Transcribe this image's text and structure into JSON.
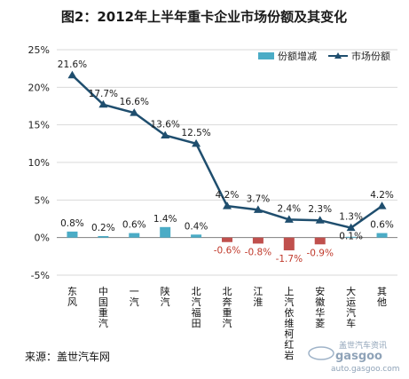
{
  "chart_data": {
    "type": "bar+line",
    "title": "图2：2012年上半年重卡企业市场份额及其变化",
    "categories": [
      "东风",
      "中国重汽",
      "一汽",
      "陕汽",
      "北汽福田",
      "北奔重汽",
      "江淮",
      "上汽依维柯红岩",
      "安徽华菱",
      "大运汽车",
      "其他"
    ],
    "series": [
      {
        "name": "份额增减",
        "type": "bar",
        "color": "#4bacc6",
        "values": [
          0.8,
          0.2,
          0.6,
          1.4,
          0.4,
          -0.6,
          -0.8,
          -1.7,
          -0.9,
          0.1,
          0.6
        ],
        "labels": [
          "0.8%",
          "0.2%",
          "0.6%",
          "1.4%",
          "0.4%",
          "-0.6%",
          "-0.8%",
          "-1.7%",
          "-0.9%",
          "0.1%",
          "0.6%"
        ],
        "negative_color": "#c0504d"
      },
      {
        "name": "市场份额",
        "type": "line",
        "color": "#1f4e6e",
        "marker": "triangle",
        "values": [
          21.6,
          17.7,
          16.6,
          13.6,
          12.5,
          4.2,
          3.7,
          2.4,
          2.3,
          1.3,
          4.2
        ],
        "labels": [
          "21.6%",
          "17.7%",
          "16.6%",
          "13.6%",
          "12.5%",
          "4.2%",
          "3.7%",
          "2.4%",
          "2.3%",
          "1.3%",
          "4.2%"
        ]
      }
    ],
    "ylim": [
      -5,
      25
    ],
    "yticks": [
      -5,
      0,
      5,
      10,
      15,
      20,
      25
    ],
    "ytick_labels": [
      "-5%",
      "0%",
      "5%",
      "10%",
      "15%",
      "20%",
      "25%"
    ],
    "grid": true,
    "legend_position": "top-right"
  },
  "source": "来源：盖世汽车网",
  "watermark": {
    "brand_cn": "盖世汽车资讯",
    "brand_en": "gasgoo",
    "url": "auto.gasgoo.com"
  }
}
